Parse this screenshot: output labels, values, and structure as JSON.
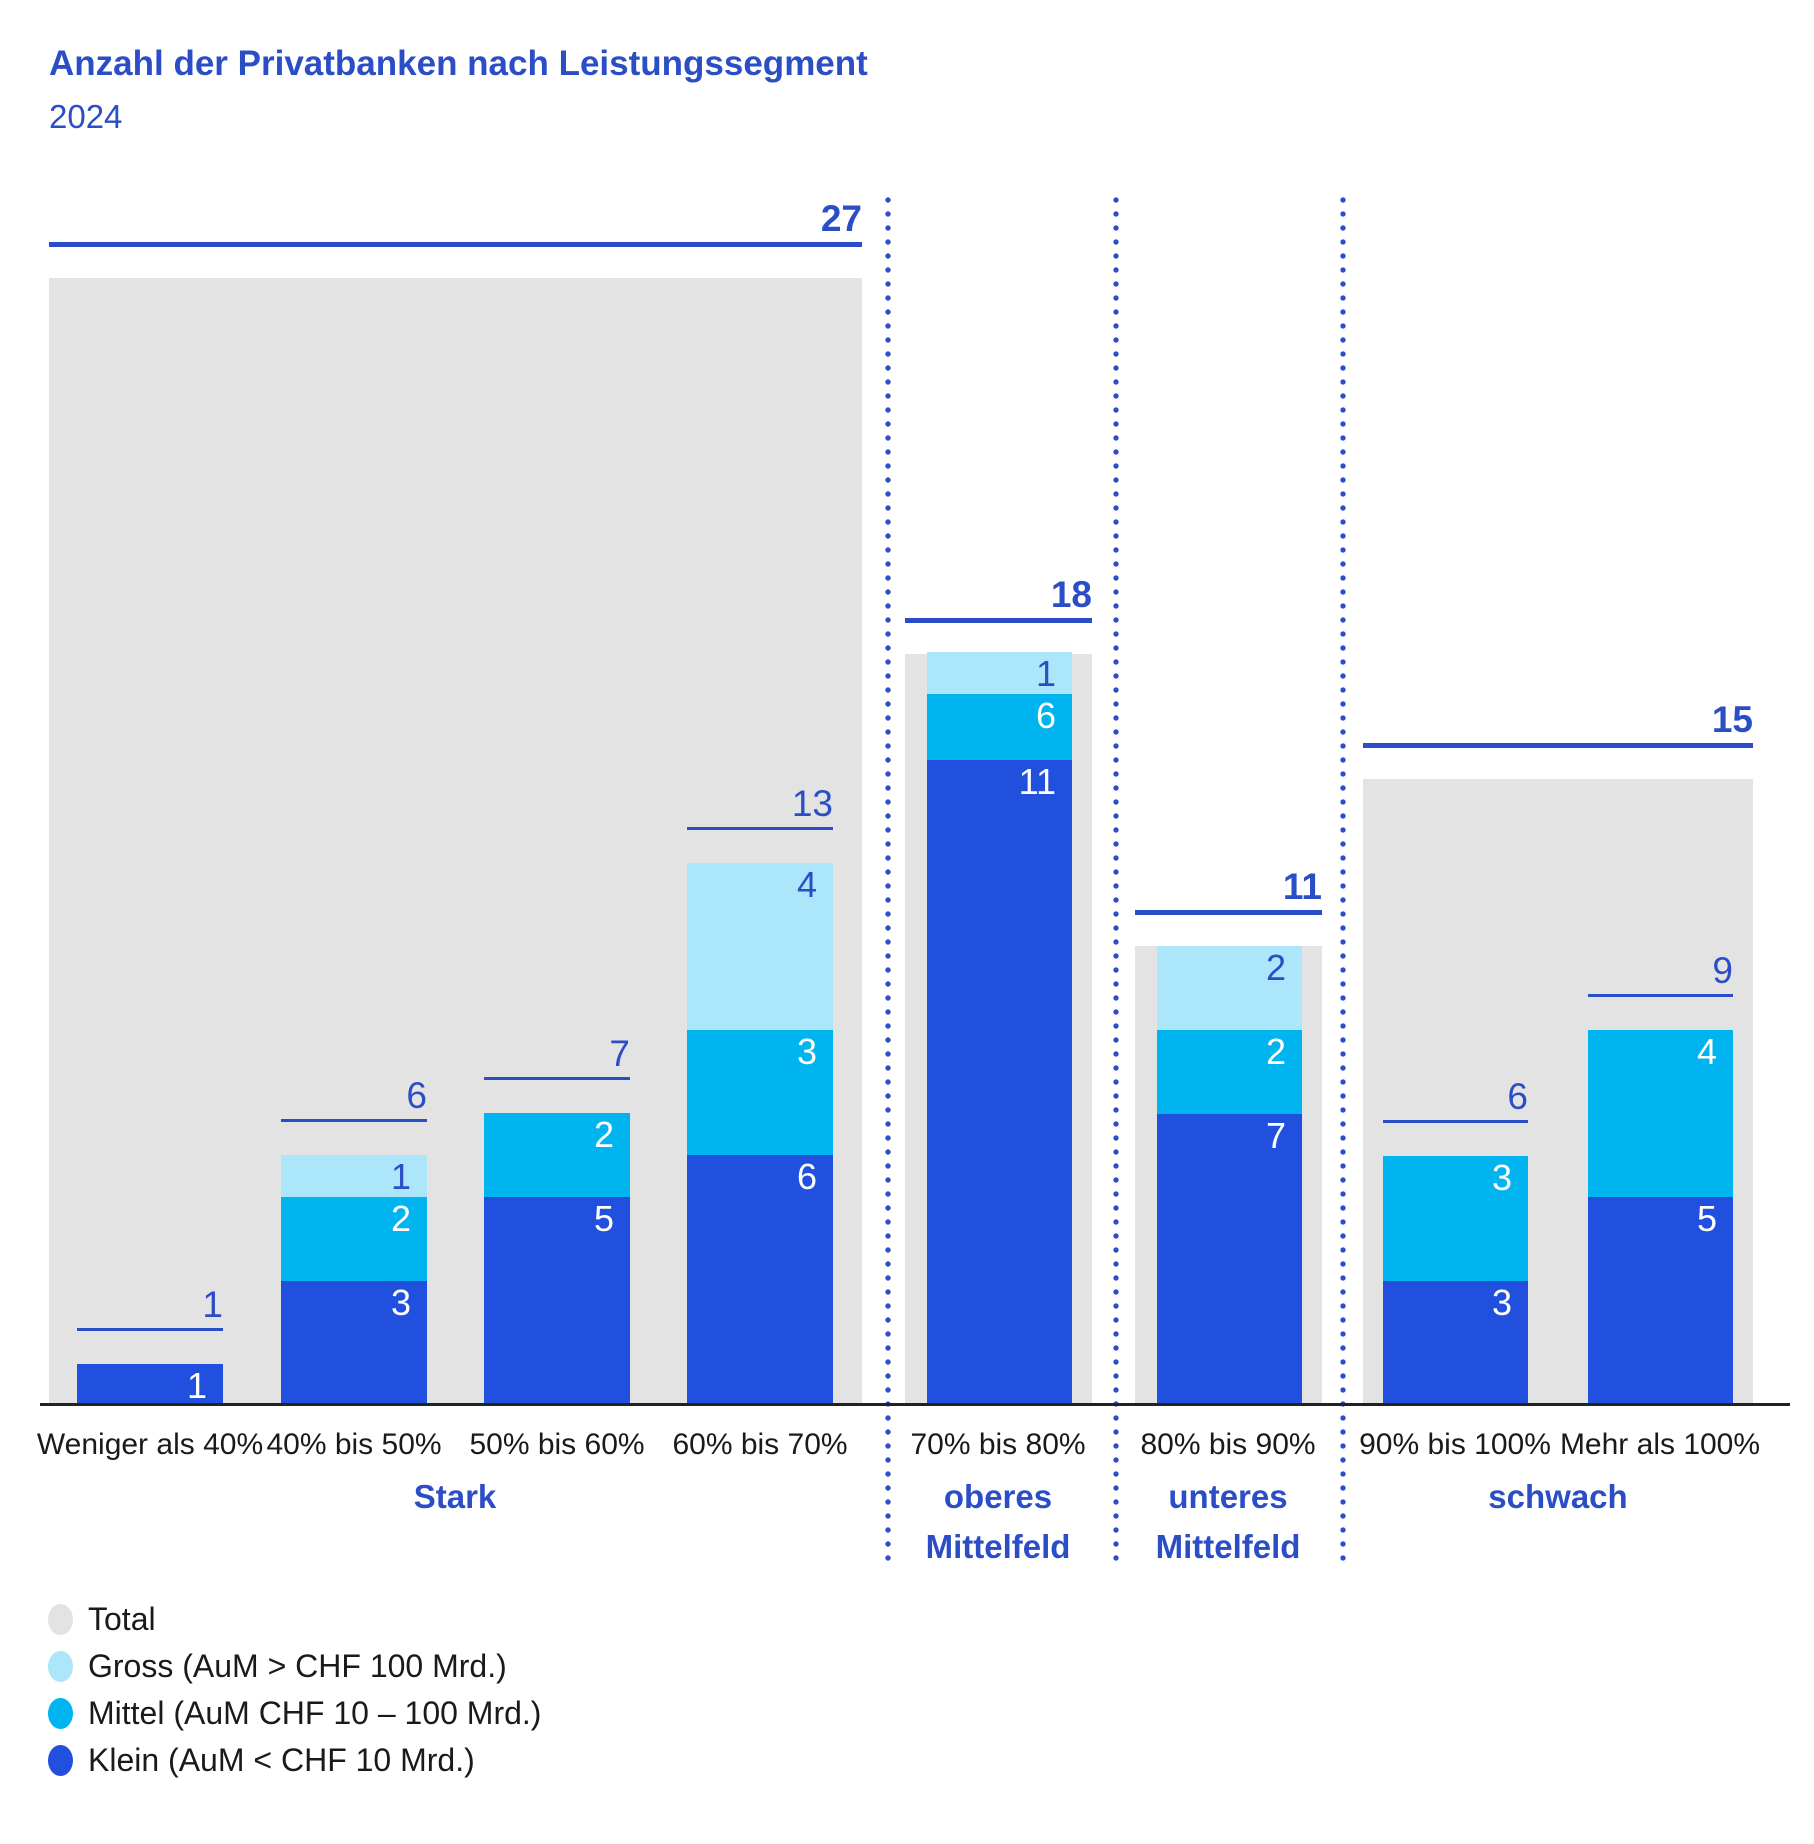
{
  "header": {
    "title": "Anzahl der Privatbanken nach Leistungssegment",
    "subtitle": "2024"
  },
  "colors": {
    "total": "#E3E3E3",
    "gross": "#ABE6FB",
    "mittel": "#00B4F0",
    "klein": "#2150DF",
    "accent_blue": "#2B4EC7",
    "axis_text": "#1A1A1A",
    "baseline": "#222222"
  },
  "legend": [
    {
      "key": "total",
      "label": "Total"
    },
    {
      "key": "gross",
      "label": "Gross (AuM > CHF 100 Mrd.)"
    },
    {
      "key": "mittel",
      "label": "Mittel (AuM CHF 10 – 100 Mrd.)"
    },
    {
      "key": "klein",
      "label": "Klein (AuM < CHF 10 Mrd.)"
    }
  ],
  "chart_data": {
    "type": "bar",
    "stacked": true,
    "title": "Anzahl der Privatbanken nach Leistungssegment",
    "subtitle": "2024",
    "categories": [
      "Weniger als 40%",
      "40% bis 50%",
      "50% bis 60%",
      "60% bis 70%",
      "70% bis 80%",
      "80% bis 90%",
      "90% bis 100%",
      "Mehr als 100%"
    ],
    "series": [
      {
        "name": "Klein (AuM < CHF 10 Mrd.)",
        "key": "klein",
        "values": [
          1,
          3,
          5,
          6,
          11,
          7,
          3,
          5
        ]
      },
      {
        "name": "Mittel (AuM CHF 10 – 100 Mrd.)",
        "key": "mittel",
        "values": [
          0,
          2,
          2,
          3,
          6,
          2,
          3,
          4
        ]
      },
      {
        "name": "Gross (AuM > CHF 100 Mrd.)",
        "key": "gross",
        "values": [
          0,
          1,
          0,
          4,
          1,
          2,
          0,
          0
        ]
      }
    ],
    "bar_totals": [
      1,
      6,
      7,
      13,
      18,
      11,
      6,
      9
    ],
    "groups": [
      {
        "label_lines": [
          "Stark"
        ],
        "categories": [
          0,
          1,
          2,
          3
        ],
        "total": 27
      },
      {
        "label_lines": [
          "oberes",
          "Mittelfeld"
        ],
        "categories": [
          4
        ],
        "total": 18
      },
      {
        "label_lines": [
          "unteres",
          "Mittelfeld"
        ],
        "categories": [
          5
        ],
        "total": 11
      },
      {
        "label_lines": [
          "schwach"
        ],
        "categories": [
          6,
          7
        ],
        "total": 15
      }
    ],
    "ylim": [
      0,
      27
    ],
    "grid": false,
    "legend_position": "bottom-left"
  }
}
